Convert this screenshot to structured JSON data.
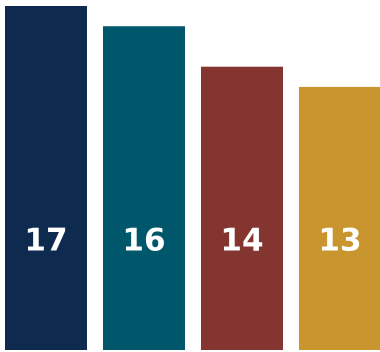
{
  "chart_data": {
    "type": "bar",
    "categories": [
      "",
      "",
      "",
      ""
    ],
    "values": [
      17,
      16,
      14,
      13
    ],
    "colors": [
      "#0f2a4f",
      "#00566b",
      "#843530",
      "#c9952e"
    ],
    "value_labels": [
      "17",
      "16",
      "14",
      "13"
    ],
    "title": "",
    "xlabel": "",
    "ylabel": "",
    "ylim": [
      0,
      17
    ],
    "grid": false,
    "legend": "none"
  }
}
